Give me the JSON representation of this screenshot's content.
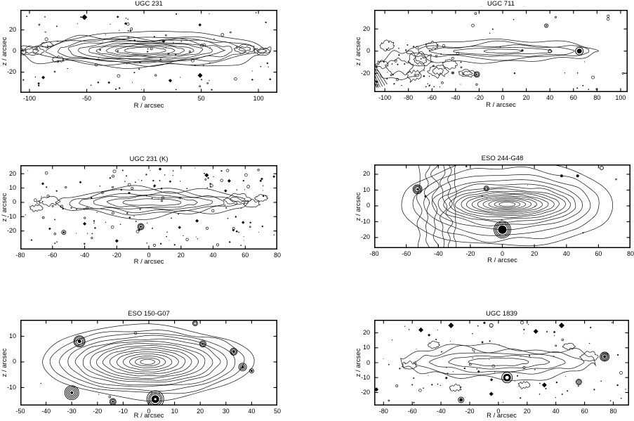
{
  "figure": {
    "background": "#ffffff",
    "ink": "#000000"
  },
  "chart_data": {
    "type": "contour",
    "layout": {
      "rows": 3,
      "cols": 2,
      "grid": "off",
      "frame": "box with inward ticks"
    },
    "panels": [
      {
        "title": "UGC 231",
        "xlabel": "R / arcsec",
        "ylabel": "z / arcsec",
        "xlim": [
          -108,
          116.5
        ],
        "ylim": [
          -39.5,
          39
        ],
        "xticks": [
          -100,
          -50,
          0,
          50,
          100
        ],
        "yticks": [
          -20,
          0,
          20
        ],
        "galaxy": {
          "cx": 1,
          "cy": 0.5,
          "seed": 101,
          "wobble_x": 0.06,
          "wobble_y": 0.5,
          "contours": [
            [
              110,
              15
            ],
            [
              96,
              13
            ],
            [
              86,
              11.8
            ],
            [
              77,
              10.6
            ],
            [
              68,
              9.5
            ],
            [
              59,
              8.4
            ],
            [
              50,
              7.3
            ],
            [
              42,
              6.2
            ],
            [
              34,
              5.1
            ],
            [
              26,
              4.0
            ],
            [
              18,
              3.0
            ]
          ]
        },
        "patches": [
          [
            -98,
            0,
            10,
            4
          ],
          [
            -108,
            -1,
            5,
            3
          ],
          [
            -85,
            6,
            5,
            2.5
          ],
          [
            88,
            2,
            9,
            3.5
          ],
          [
            103,
            0,
            7,
            2.5
          ],
          [
            -75,
            -8,
            5,
            2.5
          ]
        ],
        "speckles": [
          {
            "x0": -106,
            "x1": 114,
            "y0": -37,
            "y1": 37,
            "count": 95,
            "seed": 11
          }
        ],
        "diamonds": [
          [
            -52,
            32,
            4
          ],
          [
            49,
            -23,
            3.5
          ],
          [
            -88,
            -25,
            2.5
          ],
          [
            23,
            -28,
            2.5
          ],
          [
            -16,
            26,
            2
          ]
        ],
        "stars": [
          {
            "x": -112,
            "y": -25,
            "core": 3,
            "rings": [
              5,
              7
            ]
          }
        ]
      },
      {
        "title": "UGC 711",
        "xlabel": "R / arcsec",
        "ylabel": "z / arcsec",
        "xlim": [
          -109,
          106
        ],
        "ylim": [
          -37,
          37.3
        ],
        "xticks": [
          -100,
          -80,
          -60,
          -40,
          -20,
          0,
          20,
          40,
          60,
          80,
          100
        ],
        "yticks": [
          -20,
          0,
          20
        ],
        "galaxy": {
          "cx": 0,
          "cy": 0,
          "seed": 202,
          "wobble_x": 0.05,
          "wobble_y": 0.45,
          "contours": [
            [
              80,
              10
            ],
            [
              73,
              6.5
            ],
            [
              62,
              4.5
            ],
            [
              42,
              3
            ],
            [
              16,
              1.8
            ]
          ]
        },
        "patches": [
          [
            -88,
            -14,
            20,
            12
          ],
          [
            -70,
            -8,
            10,
            6
          ],
          [
            -55,
            -18,
            8,
            5
          ],
          [
            -98,
            5,
            6,
            4
          ],
          [
            -75,
            -22,
            6,
            4
          ],
          [
            -60,
            5,
            5,
            3
          ],
          [
            -45,
            -12,
            6,
            4
          ],
          [
            -30,
            -20,
            7,
            3
          ],
          [
            -102,
            -12,
            5,
            3
          ]
        ],
        "speckles": [
          {
            "x0": -107,
            "x1": -35,
            "y0": -33,
            "y1": 10,
            "count": 55,
            "seed": 22
          },
          {
            "x0": -35,
            "x1": 104,
            "y0": -35,
            "y1": 35,
            "count": 22,
            "seed": 23
          }
        ],
        "diamonds": [],
        "hatch": [
          [
            -108.5,
            -13,
            -98,
            -30
          ],
          [
            -108.5,
            -16,
            -100,
            -31
          ],
          [
            -108.5,
            -19,
            -102,
            -32
          ],
          [
            -108.5,
            -22,
            -104,
            -32.5
          ],
          [
            -108.5,
            -25,
            -105.5,
            -33
          ],
          [
            -108.5,
            -28,
            -107,
            -33
          ]
        ],
        "stars": [
          {
            "x": 65,
            "y": 0,
            "core": 3.5,
            "rings": [
              5.5
            ]
          },
          {
            "x": -22,
            "y": -21,
            "core": 1,
            "rings": [
              2.5,
              4
            ]
          },
          {
            "x": 37,
            "y": 23,
            "core": 1,
            "rings": [
              2.5
            ]
          },
          {
            "x": 40,
            "y": 0,
            "rings": [
              2.2
            ]
          }
        ]
      },
      {
        "title": "UGC 231 (K)",
        "xlabel": "R / arcsec",
        "ylabel": "z / arcsec",
        "xlim": [
          -80,
          80
        ],
        "ylim": [
          -33,
          26
        ],
        "xticks": [
          -80,
          -60,
          -40,
          -20,
          0,
          20,
          40,
          60,
          80
        ],
        "yticks": [
          -20,
          -10,
          0,
          10,
          20
        ],
        "galaxy": {
          "cx": 2,
          "cy": 0,
          "seed": 303,
          "wobble_x": 0.08,
          "wobble_y": 0.65,
          "contours": [
            [
              60,
              8.5
            ],
            [
              52,
              7.2
            ],
            [
              45,
              6
            ],
            [
              37,
              4.8
            ],
            [
              28,
              3.6
            ],
            [
              18,
              2.4
            ]
          ]
        },
        "patches": [
          [
            55,
            2,
            8,
            3.5
          ],
          [
            64,
            -1,
            5,
            2.5
          ],
          [
            -62,
            1,
            6,
            3
          ],
          [
            70,
            3,
            4,
            2
          ],
          [
            -70,
            -4,
            4,
            2
          ]
        ],
        "speckles": [
          {
            "x0": -78,
            "x1": 78,
            "y0": -31,
            "y1": 24,
            "count": 150,
            "seed": 33
          }
        ],
        "diamonds": [
          [
            36,
            19,
            3
          ],
          [
            50,
            15,
            2.5
          ],
          [
            -66,
            13,
            2
          ],
          [
            30,
            -13,
            2.5
          ],
          [
            -40,
            -15,
            2.5
          ],
          [
            -20,
            -27,
            2.5
          ]
        ],
        "stars": [
          {
            "x": -5,
            "y": -17,
            "core": 1.5,
            "rings": [
              3,
              4.5
            ]
          },
          {
            "x": -53,
            "y": -21,
            "core": 1.5,
            "rings": [
              3
            ]
          }
        ]
      },
      {
        "title": "ESO 244-G48",
        "xlabel": "R / arcsec",
        "ylabel": "z / arcsec",
        "xlim": [
          -80,
          80
        ],
        "ylim": [
          -26.7,
          26.2
        ],
        "xticks": [
          -80,
          -60,
          -40,
          -20,
          0,
          20,
          40,
          60,
          80
        ],
        "yticks": [
          -20,
          -10,
          0,
          10,
          20
        ],
        "galaxy": {
          "cx": 3,
          "cy": 1,
          "seed": 404,
          "wobble_x": 0.025,
          "wobble_y": 0.12,
          "contours": [
            [
              66,
              27
            ],
            [
              58,
              23
            ],
            [
              52,
              19
            ],
            [
              47,
              15.5
            ],
            [
              43,
              13
            ],
            [
              39.5,
              11
            ],
            [
              36,
              9.5
            ],
            [
              32.5,
              8.2
            ],
            [
              29,
              7.1
            ],
            [
              25.5,
              6.1
            ],
            [
              22,
              5.2
            ],
            [
              18.5,
              4.4
            ],
            [
              15,
              3.6
            ],
            [
              11.5,
              2.8
            ],
            [
              8,
              2.1
            ],
            [
              5,
              1.4
            ]
          ]
        },
        "vlines": [
          {
            "x": -52,
            "amp": 2,
            "seed": 41
          },
          {
            "x": -47,
            "amp": 2.5,
            "seed": 42
          },
          {
            "x": -42,
            "amp": 3,
            "seed": 43
          },
          {
            "x": -37,
            "amp": 3,
            "seed": 44
          },
          {
            "x": -33,
            "amp": 2.5,
            "seed": 45
          },
          {
            "x": -29.5,
            "amp": 2,
            "seed": 46
          }
        ],
        "speckles": [
          {
            "x0": -75,
            "x1": 75,
            "y0": -25,
            "y1": 25,
            "count": 8,
            "seed": 44
          }
        ],
        "diamonds": [],
        "stars": [
          {
            "x": 0,
            "y": -15,
            "core": 6,
            "rings": [
              8,
              10,
              12
            ]
          },
          {
            "x": -53,
            "y": 10.5,
            "core": 1.5,
            "rings": [
              3.5,
              5,
              6.5
            ]
          },
          {
            "x": -48,
            "y": 6,
            "core": 1.5
          },
          {
            "x": -10,
            "y": 11,
            "rings": [
              2,
              3.5
            ]
          },
          {
            "x": 37,
            "y": 19,
            "core": 2
          },
          {
            "x": 47,
            "y": 19,
            "core": 2
          },
          {
            "x": 62,
            "y": 24,
            "rings": [
              2.5
            ]
          }
        ]
      },
      {
        "title": "ESO 150-G07",
        "xlabel": "R / arcsec",
        "ylabel": "z / arcsec",
        "xlim": [
          -50,
          50
        ],
        "ylim": [
          -17,
          16.4
        ],
        "xticks": [
          -50,
          -40,
          -30,
          -20,
          -10,
          0,
          10,
          20,
          30,
          40,
          50
        ],
        "yticks": [
          -10,
          0,
          10
        ],
        "galaxy": {
          "cx": -0.5,
          "cy": 0,
          "seed": 505,
          "wobble_x": 0.03,
          "wobble_y": 0.1,
          "contours": [
            [
              41,
              14
            ],
            [
              37.5,
              12.3
            ],
            [
              34,
              11
            ],
            [
              31,
              9.9
            ],
            [
              28,
              8.9
            ],
            [
              25.2,
              8
            ],
            [
              22.5,
              7.1
            ],
            [
              19.8,
              6.3
            ],
            [
              17.2,
              5.5
            ],
            [
              14.6,
              4.7
            ],
            [
              12,
              3.9
            ],
            [
              9.5,
              3.1
            ],
            [
              7,
              2.3
            ],
            [
              4.8,
              1.6
            ],
            [
              2.8,
              1.0
            ]
          ]
        },
        "speckles": [
          {
            "x0": -48,
            "x1": 48,
            "y0": -15,
            "y1": 15,
            "count": 5,
            "seed": 55
          }
        ],
        "diamonds": [],
        "stars": [
          {
            "x": 2.5,
            "y": -14.5,
            "core": 5.5,
            "hole": 1.6,
            "rings": [
              7.5,
              9.5,
              12
            ]
          },
          {
            "x": -27,
            "y": 8,
            "core": 2.5,
            "rings": [
              4.5,
              6.5,
              8
            ]
          },
          {
            "x": 21,
            "y": 7,
            "core": 1.5,
            "rings": [
              3,
              4.5
            ]
          },
          {
            "x": 33,
            "y": 4,
            "core": 2,
            "rings": [
              3.5,
              5
            ]
          },
          {
            "x": 36.5,
            "y": -2,
            "core": 2,
            "rings": [
              3.5,
              5.5
            ]
          },
          {
            "x": 40,
            "y": -3.5,
            "core": 1.5,
            "rings": [
              3
            ]
          },
          {
            "x": -30,
            "y": -12,
            "core": 2,
            "rings": [
              4,
              6,
              8,
              10
            ]
          },
          {
            "x": -14,
            "y": -15.5,
            "core": 1.5,
            "rings": [
              3,
              4.5
            ]
          },
          {
            "x": 18,
            "y": 15,
            "rings": [
              2,
              3.5
            ]
          }
        ]
      },
      {
        "title": "UGC 1839",
        "xlabel": "R / arcsec",
        "ylabel": "z / arcsec",
        "xlim": [
          -86.5,
          91
        ],
        "ylim": [
          -28.8,
          28.8
        ],
        "xticks": [
          -80,
          -60,
          -40,
          -20,
          0,
          20,
          40,
          60,
          80
        ],
        "yticks": [
          -20,
          -10,
          0,
          10,
          20
        ],
        "galaxy": {
          "cx": 0,
          "cy": 0.5,
          "seed": 606,
          "wobble_x": 0.07,
          "wobble_y": 0.55,
          "contours": [
            [
              68,
              10.5
            ],
            [
              58,
              8.2
            ],
            [
              47,
              6.2
            ],
            [
              35,
              4.2
            ],
            [
              21,
              2.6
            ]
          ]
        },
        "patches": [
          [
            63,
            4,
            6,
            3
          ],
          [
            -62,
            -2,
            5,
            2.5
          ],
          [
            49,
            11,
            4,
            2
          ],
          [
            -45,
            12,
            4,
            2
          ],
          [
            18,
            -15,
            4,
            2
          ],
          [
            -30,
            -17,
            4,
            2
          ]
        ],
        "speckles": [
          {
            "x0": -84,
            "x1": 89,
            "y0": -27,
            "y1": 27,
            "count": 85,
            "seed": 66
          }
        ],
        "diamonds": [
          [
            -54,
            22,
            3.5
          ],
          [
            -33,
            25,
            4
          ],
          [
            44,
            25,
            4
          ],
          [
            26,
            21,
            3.5
          ],
          [
            32,
            -15,
            3.5
          ],
          [
            -5,
            -21,
            3
          ],
          [
            -85,
            -18,
            3
          ]
        ],
        "stars": [
          {
            "x": 6,
            "y": -10,
            "core": 5.5,
            "hole": 2.6,
            "rings": [
              7.5
            ]
          },
          {
            "x": 74,
            "y": 4,
            "core": 2,
            "rings": [
              3.5,
              5,
              6.5
            ]
          },
          {
            "x": 56,
            "y": -13,
            "core": 1,
            "rings": [
              2.5,
              4
            ]
          },
          {
            "x": -5,
            "y": 25,
            "rings": [
              2.5
            ]
          },
          {
            "x": -26,
            "y": -25,
            "core": 2.5,
            "rings": [
              4
            ]
          }
        ]
      }
    ]
  }
}
